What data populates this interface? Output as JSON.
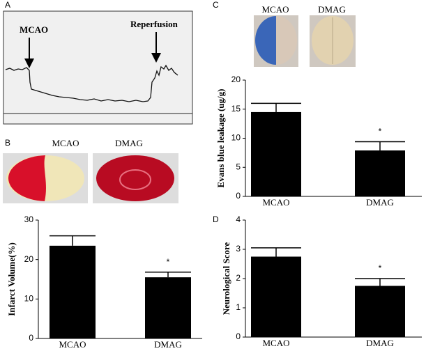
{
  "panels": [
    {
      "label": "A",
      "annotations": [
        "MCAO",
        "Reperfusion"
      ]
    },
    {
      "label": "B",
      "image_labels": [
        "MCAO",
        "DMAG"
      ]
    },
    {
      "label": "C",
      "image_labels": [
        "MCAO",
        "DMAG"
      ]
    },
    {
      "label": "D"
    }
  ],
  "chart_data": [
    {
      "type": "bar",
      "ylabel": "Infarct Volume(%)",
      "categories": [
        "MCAO",
        "DMAG"
      ],
      "values": [
        23.5,
        15.5
      ],
      "errors": [
        2.5,
        1.3
      ],
      "color": "#000000",
      "ylim": [
        0,
        30
      ],
      "yticks": [
        0,
        10,
        20,
        30
      ],
      "annotation": "*"
    },
    {
      "type": "bar",
      "ylabel": "Evans blue leakage (ug/g)",
      "categories": [
        "MCAO",
        "DMAG"
      ],
      "values": [
        14.5,
        7.9
      ],
      "errors": [
        1.5,
        1.5
      ],
      "color": "#000000",
      "ylim": [
        0,
        20
      ],
      "yticks": [
        0,
        5,
        10,
        15,
        20
      ],
      "annotation": "*"
    },
    {
      "type": "bar",
      "ylabel": "Neurological Score",
      "categories": [
        "MCAO",
        "DMAG"
      ],
      "values": [
        2.75,
        1.75
      ],
      "errors": [
        0.3,
        0.25
      ],
      "color": "#000000",
      "ylim": [
        0,
        4
      ],
      "yticks": [
        0,
        1,
        2,
        3,
        4
      ],
      "annotation": "*"
    }
  ]
}
